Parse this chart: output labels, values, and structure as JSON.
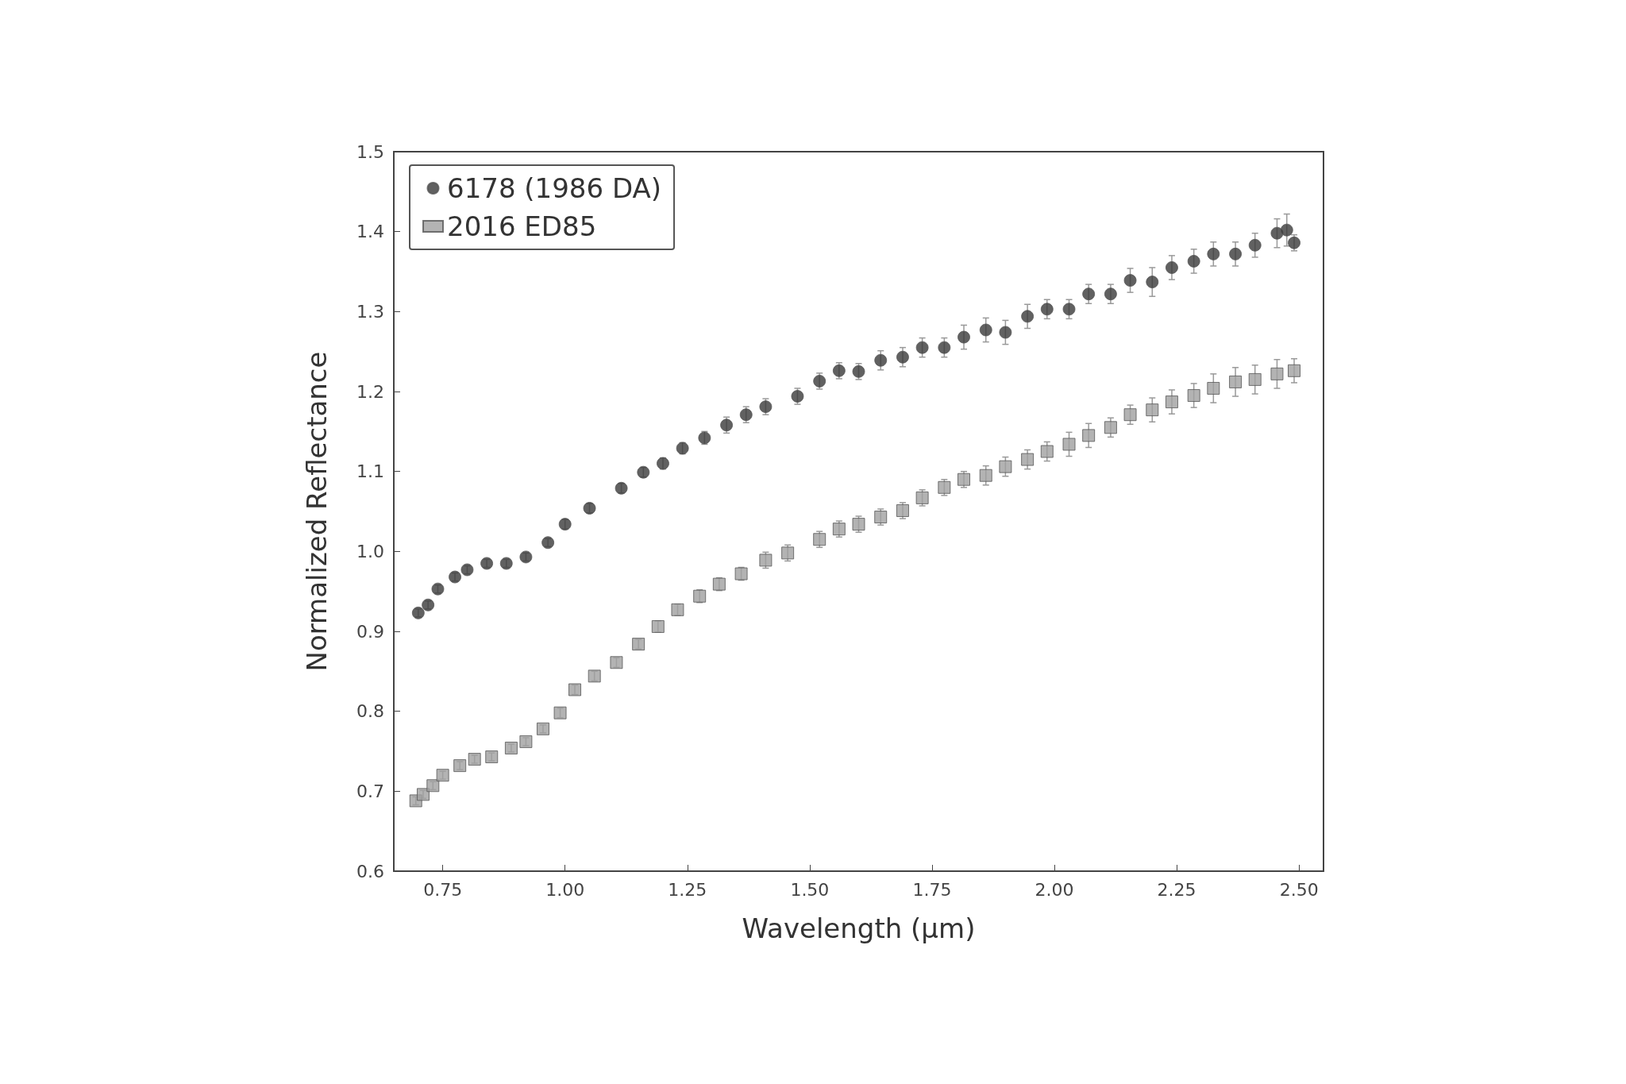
{
  "chart_data": {
    "type": "scatter",
    "xlabel": "Wavelength (μm)",
    "ylabel": "Normalized Reflectance",
    "xlim": [
      0.65,
      2.55
    ],
    "xticks": [
      {
        "value": 0.75,
        "label": "0.75"
      },
      {
        "value": 1,
        "label": "1.00"
      },
      {
        "value": 1.25,
        "label": "1.25"
      },
      {
        "value": 1.5,
        "label": "1.50"
      },
      {
        "value": 1.75,
        "label": "1.75"
      },
      {
        "value": 2,
        "label": "2.00"
      },
      {
        "value": 2.25,
        "label": "2.25"
      },
      {
        "value": 2.5,
        "label": "2.50"
      }
    ],
    "ylim": [
      0.6,
      1.5
    ],
    "yticks": [
      0.6,
      0.7,
      0.8,
      0.9,
      {
        "value": 1,
        "label": "1.0"
      },
      1.1,
      1.2,
      1.3,
      1.4,
      1.5
    ],
    "legend": "top left",
    "grid": false,
    "series": [
      {
        "name": "6178 (1986 DA)",
        "color": "#3a3a3a",
        "marker": "circle",
        "x": [
          0.7,
          0.72,
          0.74,
          0.775,
          0.8,
          0.84,
          0.88,
          0.92,
          0.965,
          1.0,
          1.05,
          1.115,
          1.16,
          1.2,
          1.24,
          1.285,
          1.33,
          1.37,
          1.41,
          1.475,
          1.52,
          1.56,
          1.6,
          1.645,
          1.69,
          1.73,
          1.775,
          1.815,
          1.86,
          1.9,
          1.945,
          1.985,
          2.03,
          2.07,
          2.115,
          2.155,
          2.2,
          2.24,
          2.285,
          2.325,
          2.37,
          2.41,
          2.455,
          2.475,
          2.49
        ],
        "values": [
          0.923,
          0.933,
          0.953,
          0.968,
          0.977,
          0.985,
          0.985,
          0.993,
          1.011,
          1.034,
          1.054,
          1.079,
          1.099,
          1.11,
          1.129,
          1.142,
          1.158,
          1.171,
          1.181,
          1.194,
          1.213,
          1.226,
          1.225,
          1.239,
          1.243,
          1.255,
          1.255,
          1.268,
          1.277,
          1.274,
          1.294,
          1.303,
          1.303,
          1.322,
          1.322,
          1.339,
          1.337,
          1.355,
          1.363,
          1.372,
          1.372,
          1.383,
          1.398,
          1.402,
          1.386
        ],
        "errors": [
          0.005,
          0.005,
          0.005,
          0.005,
          0.005,
          0.005,
          0.005,
          0.005,
          0.005,
          0.006,
          0.006,
          0.006,
          0.006,
          0.007,
          0.007,
          0.008,
          0.01,
          0.01,
          0.01,
          0.01,
          0.01,
          0.01,
          0.01,
          0.012,
          0.012,
          0.012,
          0.012,
          0.015,
          0.015,
          0.015,
          0.015,
          0.012,
          0.012,
          0.012,
          0.012,
          0.015,
          0.018,
          0.015,
          0.015,
          0.015,
          0.015,
          0.015,
          0.018,
          0.02,
          0.01
        ]
      },
      {
        "name": "2016 ED85",
        "color": "#a0a0a0",
        "marker": "square",
        "x": [
          0.695,
          0.71,
          0.73,
          0.75,
          0.785,
          0.815,
          0.85,
          0.89,
          0.92,
          0.955,
          0.99,
          1.02,
          1.06,
          1.105,
          1.15,
          1.19,
          1.23,
          1.275,
          1.315,
          1.36,
          1.41,
          1.455,
          1.52,
          1.56,
          1.6,
          1.645,
          1.69,
          1.73,
          1.775,
          1.815,
          1.86,
          1.9,
          1.945,
          1.985,
          2.03,
          2.07,
          2.115,
          2.155,
          2.2,
          2.24,
          2.285,
          2.325,
          2.37,
          2.41,
          2.455,
          2.49
        ],
        "values": [
          0.688,
          0.696,
          0.707,
          0.72,
          0.732,
          0.74,
          0.743,
          0.754,
          0.762,
          0.778,
          0.798,
          0.827,
          0.844,
          0.861,
          0.884,
          0.906,
          0.927,
          0.944,
          0.959,
          0.972,
          0.989,
          0.998,
          1.015,
          1.028,
          1.034,
          1.043,
          1.051,
          1.067,
          1.08,
          1.09,
          1.095,
          1.106,
          1.115,
          1.125,
          1.134,
          1.145,
          1.155,
          1.171,
          1.177,
          1.187,
          1.195,
          1.204,
          1.212,
          1.215,
          1.222,
          1.226
        ],
        "errors": [
          0.005,
          0.005,
          0.005,
          0.005,
          0.005,
          0.005,
          0.005,
          0.005,
          0.005,
          0.005,
          0.006,
          0.006,
          0.006,
          0.006,
          0.006,
          0.007,
          0.007,
          0.008,
          0.008,
          0.008,
          0.01,
          0.01,
          0.01,
          0.01,
          0.01,
          0.01,
          0.01,
          0.01,
          0.01,
          0.01,
          0.012,
          0.012,
          0.012,
          0.012,
          0.015,
          0.015,
          0.012,
          0.012,
          0.015,
          0.015,
          0.015,
          0.018,
          0.018,
          0.018,
          0.018,
          0.015
        ]
      }
    ]
  }
}
